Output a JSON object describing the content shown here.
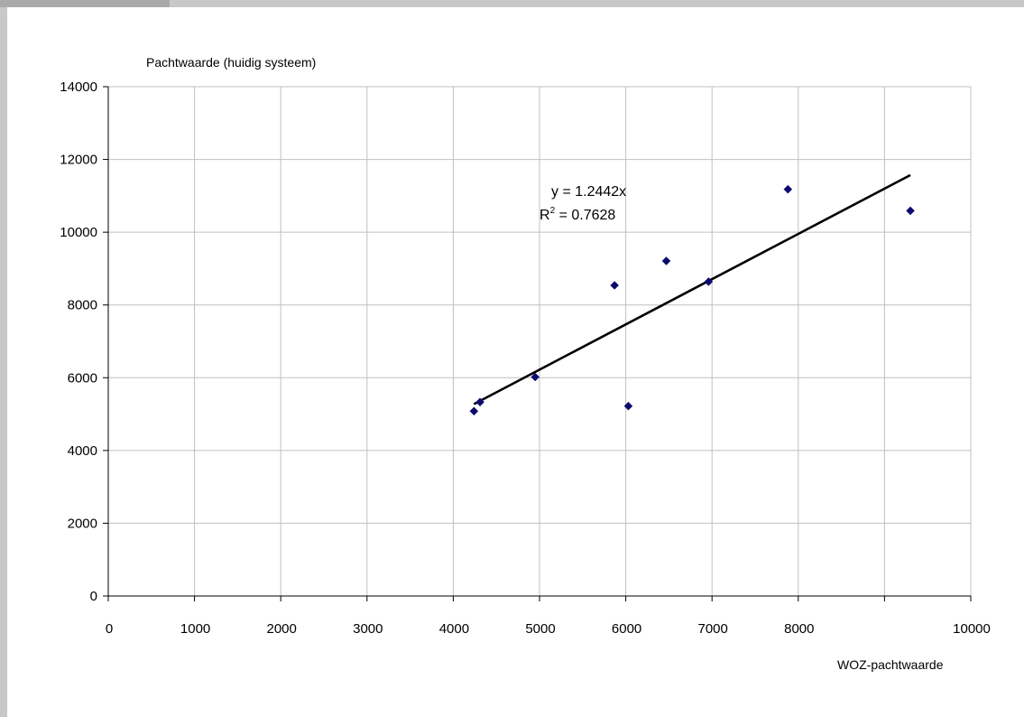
{
  "chart_data": {
    "type": "scatter",
    "ylabel": "Pachtwaarde (huidig systeem)",
    "xlabel": "WOZ-pachtwaarde",
    "xlim": [
      0,
      10000
    ],
    "ylim": [
      0,
      14000
    ],
    "xticks": [
      "0",
      "1000",
      "2000",
      "3000",
      "4000",
      "5000",
      "6000",
      "7000",
      "8000",
      "10000"
    ],
    "xtick_values": [
      0,
      1000,
      2000,
      3000,
      4000,
      5000,
      6000,
      7000,
      8000,
      10000
    ],
    "yticks": [
      "0",
      "2000",
      "4000",
      "6000",
      "8000",
      "10000",
      "12000",
      "14000"
    ],
    "ytick_values": [
      0,
      2000,
      4000,
      6000,
      8000,
      10000,
      12000,
      14000
    ],
    "vertical_gridlines": [
      1000,
      2000,
      3000,
      4000,
      5000,
      6000,
      7000,
      8000,
      9000,
      10000
    ],
    "grid": true,
    "marker_color": "#0b0b6e",
    "points": [
      {
        "x": 4240,
        "y": 5080
      },
      {
        "x": 4310,
        "y": 5330
      },
      {
        "x": 4950,
        "y": 6020
      },
      {
        "x": 5870,
        "y": 8540
      },
      {
        "x": 6030,
        "y": 5220
      },
      {
        "x": 6470,
        "y": 9210
      },
      {
        "x": 6960,
        "y": 8640
      },
      {
        "x": 7880,
        "y": 11180
      },
      {
        "x": 9300,
        "y": 10590
      }
    ],
    "trendline": {
      "slope": 1.2442,
      "x_range": [
        4240,
        9300
      ],
      "equation_label": "y = 1.2442x",
      "r2_label_base": "R",
      "r2_label_sup": "2",
      "r2_label_value": " = 0.7628"
    }
  }
}
